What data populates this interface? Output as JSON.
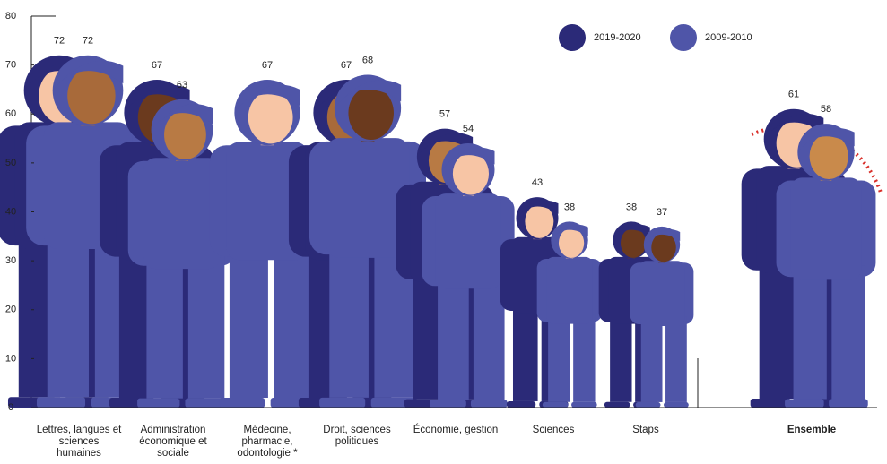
{
  "chart_data": {
    "type": "pictogram",
    "categories": [
      "Lettres, langues et sciences humaines",
      "Administration économique et sociale",
      "Médecine, pharmacie, odontologie *",
      "Droit, sciences politiques",
      "Économie, gestion",
      "Sciences",
      "Staps",
      "Ensemble"
    ],
    "series": [
      {
        "name": "2019-2020",
        "color": "#2b2a78",
        "values": [
          72,
          67,
          null,
          67,
          57,
          43,
          38,
          61
        ]
      },
      {
        "name": "2009-2010",
        "color": "#4f55a8",
        "values": [
          72,
          63,
          67,
          68,
          54,
          38,
          37,
          58
        ]
      }
    ],
    "ylim": [
      0,
      80
    ],
    "yticks": [
      0,
      10,
      20,
      30,
      40,
      50,
      60,
      70,
      80
    ]
  }
}
